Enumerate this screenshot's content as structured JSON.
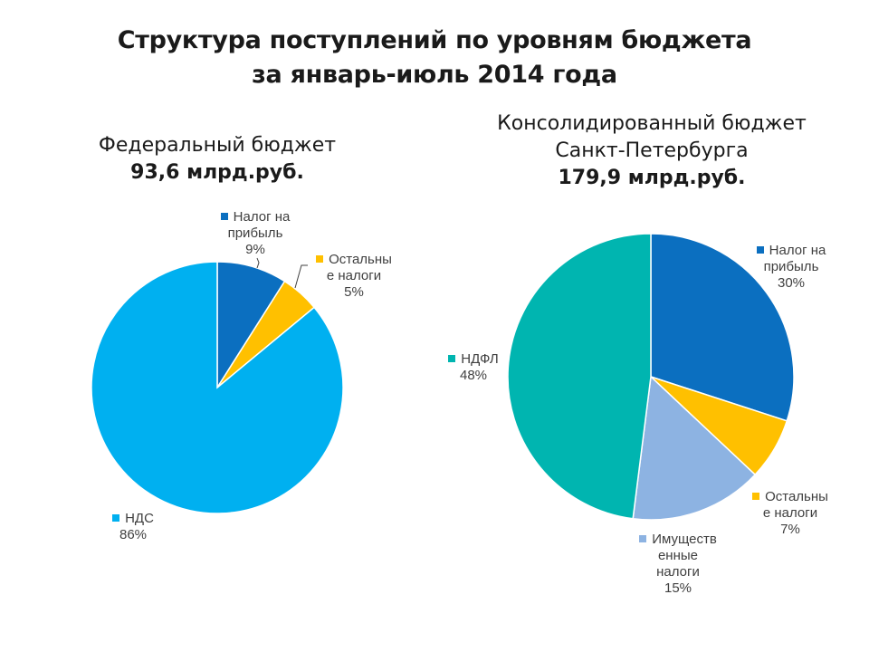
{
  "title": {
    "line1": "Структура поступлений по уровням бюджета",
    "line2": "за январь-июль 2014 года"
  },
  "chart_data": [
    {
      "type": "pie",
      "title": "Федеральный бюджет",
      "total": "93,6 млрд.руб.",
      "slices": [
        {
          "name": "Налог на прибыль",
          "label_lines": [
            "Налог на",
            "прибыль"
          ],
          "pct_label": "9%",
          "value": 9,
          "color": "#0b6fc0"
        },
        {
          "name": "Остальные налоги",
          "label_lines": [
            "Остальны",
            "е налоги"
          ],
          "pct_label": "5%",
          "value": 5,
          "color": "#ffc000"
        },
        {
          "name": "НДС",
          "label_lines": [
            "НДС"
          ],
          "pct_label": "86%",
          "value": 86,
          "color": "#00b0f0"
        }
      ]
    },
    {
      "type": "pie",
      "title_line1": "Консолидированный бюджет",
      "title_line2": "Санкт-Петербурга",
      "total": "179,9 млрд.руб.",
      "slices": [
        {
          "name": "Налог на прибыль",
          "label_lines": [
            "Налог на",
            "прибыль"
          ],
          "pct_label": "30%",
          "value": 30,
          "color": "#0b6fc0"
        },
        {
          "name": "Остальные налоги",
          "label_lines": [
            "Остальны",
            "е налоги"
          ],
          "pct_label": "7%",
          "value": 7,
          "color": "#ffc000"
        },
        {
          "name": "Имущественные налоги",
          "label_lines": [
            "Имуществ",
            "енные",
            "налоги"
          ],
          "pct_label": "15%",
          "value": 15,
          "color": "#8db3e2"
        },
        {
          "name": "НДФЛ",
          "label_lines": [
            "НДФЛ"
          ],
          "pct_label": "48%",
          "value": 48,
          "color": "#00b5b0"
        }
      ]
    }
  ]
}
